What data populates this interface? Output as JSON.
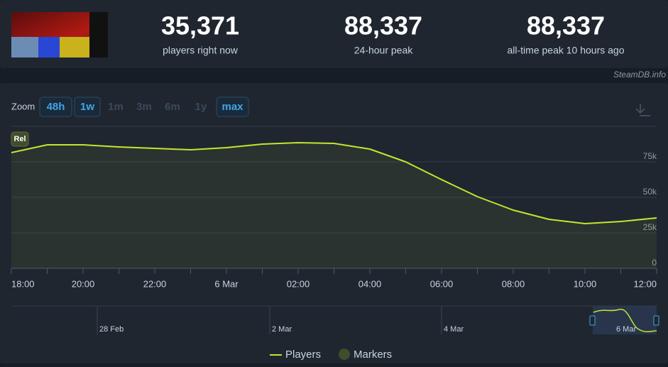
{
  "header": {
    "stats": [
      {
        "value": "35,371",
        "label": "players right now"
      },
      {
        "value": "88,337",
        "label": "24-hour peak"
      },
      {
        "value": "88,337",
        "label": "all-time peak 10 hours ago"
      }
    ],
    "watermark": "SteamDB.info"
  },
  "zoom": {
    "label": "Zoom",
    "options": [
      "48h",
      "1w",
      "1m",
      "3m",
      "6m",
      "1y",
      "max"
    ],
    "enabled": [
      true,
      true,
      false,
      false,
      false,
      false,
      true
    ]
  },
  "navigator": {
    "labels": [
      "28 Feb",
      "2 Mar",
      "4 Mar",
      "6 Mar"
    ]
  },
  "chart_data": {
    "type": "line",
    "categories": [
      "18:00",
      null,
      "20:00",
      null,
      "22:00",
      null,
      "6 Mar",
      null,
      "02:00",
      null,
      "04:00",
      null,
      "06:00",
      null,
      "08:00",
      null,
      "10:00",
      null,
      "12:00"
    ],
    "series": [
      {
        "name": "Players",
        "color": "#c2e62f",
        "values": [
          81500,
          87000,
          87000,
          85500,
          84500,
          83500,
          85000,
          87500,
          88500,
          88000,
          84000,
          75000,
          62500,
          50500,
          41000,
          34500,
          31500,
          33000,
          35500
        ]
      }
    ],
    "marker_label": "Rel",
    "markers_legend": "Markers",
    "markers_color": "#3f4d2b",
    "ylim": [
      0,
      100000
    ],
    "yticks": [
      {
        "value": 0,
        "label": "0"
      },
      {
        "value": 25000,
        "label": "25k"
      },
      {
        "value": 50000,
        "label": "50k"
      },
      {
        "value": 75000,
        "label": "75k"
      },
      {
        "value": 100000,
        "label": ""
      }
    ],
    "grid": true
  }
}
